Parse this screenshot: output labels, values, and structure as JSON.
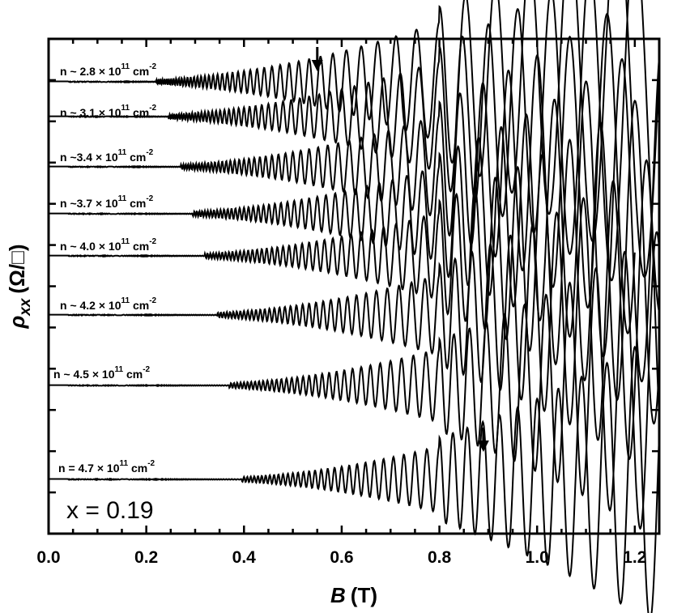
{
  "chart_data": {
    "type": "line",
    "title": "",
    "xlabel": "B (T)",
    "xlabel_parts": {
      "symbol": "B",
      "unit": "(T)"
    },
    "ylabel": "ρxx (Ω/□)",
    "ylabel_parts": {
      "symbol": "ρ",
      "subscript": "xx",
      "unit": "(Ω/□)"
    },
    "xlim": [
      0.0,
      1.25
    ],
    "x_ticks": [
      "0.0",
      "0.2",
      "0.4",
      "0.6",
      "0.8",
      "1.0",
      "1.2"
    ],
    "y_tick_labels_shown": false,
    "grid": false,
    "annotation": "x = 0.19",
    "series": [
      {
        "name": "n ~ 2.8 × 10^11 cm^-2",
        "label": {
          "base": "n ~ 2.8 × 10",
          "exp": "11",
          "unit": " cm",
          "unit_exp": "-2"
        },
        "offset_level": 7,
        "x_end": 1.25,
        "arrow_at": 0.55
      },
      {
        "name": "n ~ 3.1 × 10^11 cm^-2",
        "label": {
          "base": "n ~ 3.1 × 10",
          "exp": "11",
          "unit": " cm",
          "unit_exp": "-2"
        },
        "offset_level": 6,
        "x_end": 1.25
      },
      {
        "name": "n ~3.4 × 10^11 cm^-2",
        "label": {
          "base": "n ~3.4 × 10",
          "exp": "11",
          "unit": " cm",
          "unit_exp": "-2"
        },
        "offset_level": 5,
        "x_end": 1.2
      },
      {
        "name": "n ~3.7 × 10^11 cm^-2",
        "label": {
          "base": "n ~3.7 × 10",
          "exp": "11",
          "unit": " cm",
          "unit_exp": "-2"
        },
        "offset_level": 4,
        "x_end": 1.25
      },
      {
        "name": "n ~ 4.0 × 10^11 cm^-2",
        "label": {
          "base": "n ~ 4.0 × 10",
          "exp": "11",
          "unit": " cm",
          "unit_exp": "-2"
        },
        "offset_level": 3,
        "x_end": 1.25
      },
      {
        "name": "n ~ 4.2 × 10^11 cm^-2",
        "label": {
          "base": "n ~ 4.2 × 10",
          "exp": "11",
          "unit": " cm",
          "unit_exp": "-2"
        },
        "offset_level": 2,
        "x_end": 1.25
      },
      {
        "name": "n ~ 4.5 × 10^11 cm^-2",
        "label": {
          "base": "n ~ 4.5 × 10",
          "exp": "11",
          "unit": " cm",
          "unit_exp": "-2"
        },
        "offset_level": 1,
        "x_end": 1.25
      },
      {
        "name": "n = 4.7 × 10^11 cm^-2",
        "label": {
          "base": "n = 4.7 × 10",
          "exp": "11",
          "unit": " cm",
          "unit_exp": "-2"
        },
        "offset_level": 0,
        "x_end": 1.25,
        "arrow_at": 0.89
      }
    ]
  }
}
